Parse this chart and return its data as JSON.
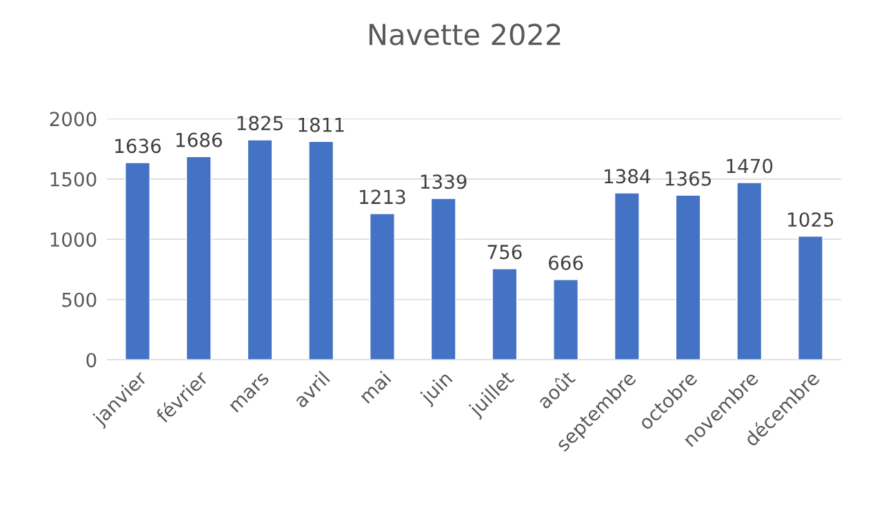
{
  "chart_data": {
    "type": "bar",
    "title": "Navette 2022",
    "categories": [
      "janvier",
      "février",
      "mars",
      "avril",
      "mai",
      "juin",
      "juillet",
      "août",
      "septembre",
      "octobre",
      "novembre",
      "décembre"
    ],
    "values": [
      1636,
      1686,
      1825,
      1811,
      1213,
      1339,
      756,
      666,
      1384,
      1365,
      1470,
      1025
    ],
    "color": "#4472c4",
    "ylim": [
      0,
      2000
    ],
    "yticks": [
      0,
      500,
      1000,
      1500,
      2000
    ],
    "grid": "y",
    "data_labels": true
  }
}
